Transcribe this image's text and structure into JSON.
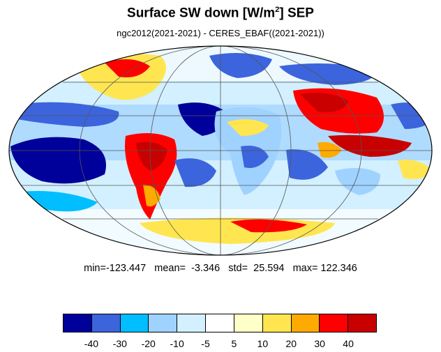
{
  "title": {
    "text": "Surface SW down [W/m",
    "superscript": "2",
    "suffix": "]  SEP"
  },
  "subtitle": "ngc2012(2021-2021) - CERES_EBAF((2021-2021))",
  "stats": {
    "text": "min=-123.447   mean=  -3.346   std=  25.594   max= 122.346"
  },
  "colorbar": {
    "colors": [
      "#00009a",
      "#3c64dc",
      "#00beff",
      "#a0d2ff",
      "#d2f0ff",
      "#ffffff",
      "#ffffc8",
      "#ffe650",
      "#ffaa00",
      "#ff0000",
      "#c80000"
    ],
    "labels": [
      "-40",
      "-30",
      "-20",
      "-10",
      "-5",
      "5",
      "10",
      "20",
      "30",
      "40"
    ]
  },
  "map": {
    "projection": "mollweide",
    "colors": {
      "strong_neg": "#00009a",
      "neg": "#3c64dc",
      "mid_neg": "#00beff",
      "light_neg": "#a0d2ff",
      "faint_neg": "#d2f0ff",
      "neutral": "#ffffff",
      "faint_pos": "#ffffc8",
      "pos": "#ffe650",
      "mid_pos": "#ffaa00",
      "strong_pos": "#ff0000",
      "very_strong_pos": "#c80000"
    }
  }
}
